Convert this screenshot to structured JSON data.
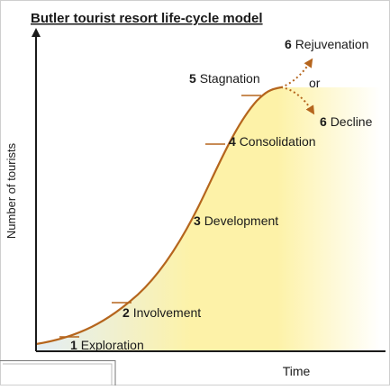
{
  "title": "Butler tourist resort life-cycle model",
  "axes": {
    "ylabel": "Number of tourists",
    "xlabel": "Time"
  },
  "stages": [
    {
      "num": "1",
      "label": "Exploration"
    },
    {
      "num": "2",
      "label": "Involvement"
    },
    {
      "num": "3",
      "label": "Development"
    },
    {
      "num": "4",
      "label": "Consolidation"
    },
    {
      "num": "5",
      "label": "Stagnation"
    },
    {
      "num": "6",
      "label": "Rejuvenation"
    },
    {
      "num": "6",
      "label": "Decline"
    }
  ],
  "branch_word": "or",
  "colors": {
    "curve": "#b5651d",
    "fill_bright": "#fdf2a8",
    "fill_pale": "#e3eef6",
    "axis": "#1a1a1a",
    "text": "#1a1a1a"
  }
}
